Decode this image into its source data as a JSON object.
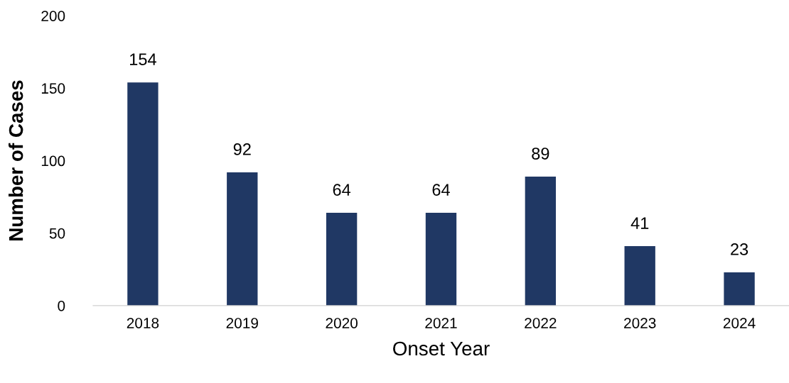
{
  "chart_data": {
    "type": "bar",
    "xlabel": "Onset Year",
    "ylabel": "Number of Cases",
    "categories": [
      "2018",
      "2019",
      "2020",
      "2021",
      "2022",
      "2023",
      "2024"
    ],
    "values": [
      154,
      92,
      64,
      64,
      89,
      41,
      23
    ],
    "color": "#203864",
    "ylim": [
      0,
      200
    ],
    "yticks": [
      0,
      50,
      100,
      150,
      200
    ],
    "data_labels": true,
    "grid": false,
    "legend": false
  }
}
